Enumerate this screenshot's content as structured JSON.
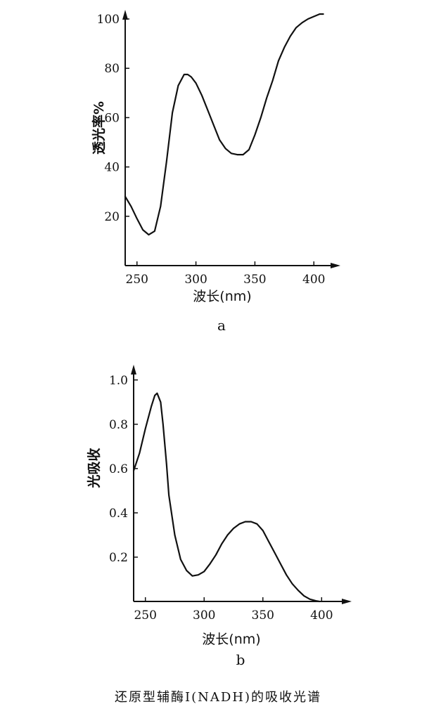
{
  "figure": {
    "caption": "还原型辅酶Ⅰ(NADH)的吸收光谱"
  },
  "colors": {
    "ink": "#111111",
    "paper": "#ffffff"
  },
  "chart_data": [
    {
      "panel_label": "a",
      "type": "line",
      "xlabel": "波长(nm)",
      "ylabel": "透光率%",
      "xlim": [
        240,
        410
      ],
      "ylim": [
        0,
        102
      ],
      "xticks": [
        250,
        300,
        350,
        400
      ],
      "yticks": [
        20,
        40,
        60,
        80,
        100
      ],
      "grid": false,
      "series": [
        {
          "x": [
            240,
            245,
            250,
            255,
            260,
            265,
            270,
            275,
            280,
            285,
            290,
            293,
            296,
            300,
            305,
            310,
            315,
            320,
            325,
            330,
            335,
            340,
            345,
            350,
            355,
            360,
            365,
            370,
            375,
            380,
            385,
            390,
            395,
            400,
            405,
            408
          ],
          "y": [
            28,
            24,
            19,
            14.5,
            12.5,
            14,
            24,
            42,
            62,
            73,
            77.5,
            77.5,
            76.5,
            74,
            69,
            63,
            57,
            51,
            47.5,
            45.5,
            45,
            45,
            47,
            53,
            60,
            68,
            75,
            83,
            88.5,
            93,
            96.5,
            98.5,
            100,
            101,
            102,
            102
          ]
        }
      ]
    },
    {
      "panel_label": "b",
      "type": "line",
      "xlabel": "波长(nm)",
      "ylabel": "光吸收",
      "xlim": [
        240,
        410
      ],
      "ylim": [
        0,
        1.05
      ],
      "xticks": [
        250,
        300,
        350,
        400
      ],
      "yticks": [
        0.2,
        0.4,
        0.6,
        0.8,
        1.0
      ],
      "ytick_labels": [
        "0.2",
        "0.4",
        "0.6",
        "0.8",
        "1.0"
      ],
      "grid": false,
      "series": [
        {
          "x": [
            240,
            245,
            250,
            255,
            258,
            260,
            263,
            265,
            268,
            270,
            275,
            280,
            285,
            290,
            295,
            300,
            305,
            310,
            315,
            320,
            325,
            330,
            335,
            340,
            345,
            350,
            355,
            360,
            365,
            370,
            375,
            380,
            385,
            390,
            395,
            398
          ],
          "y": [
            0.59,
            0.67,
            0.78,
            0.88,
            0.93,
            0.94,
            0.9,
            0.8,
            0.62,
            0.48,
            0.3,
            0.19,
            0.14,
            0.115,
            0.12,
            0.135,
            0.17,
            0.21,
            0.26,
            0.3,
            0.33,
            0.35,
            0.36,
            0.36,
            0.35,
            0.32,
            0.27,
            0.22,
            0.17,
            0.12,
            0.08,
            0.05,
            0.025,
            0.01,
            0.003,
            0
          ]
        }
      ]
    }
  ]
}
